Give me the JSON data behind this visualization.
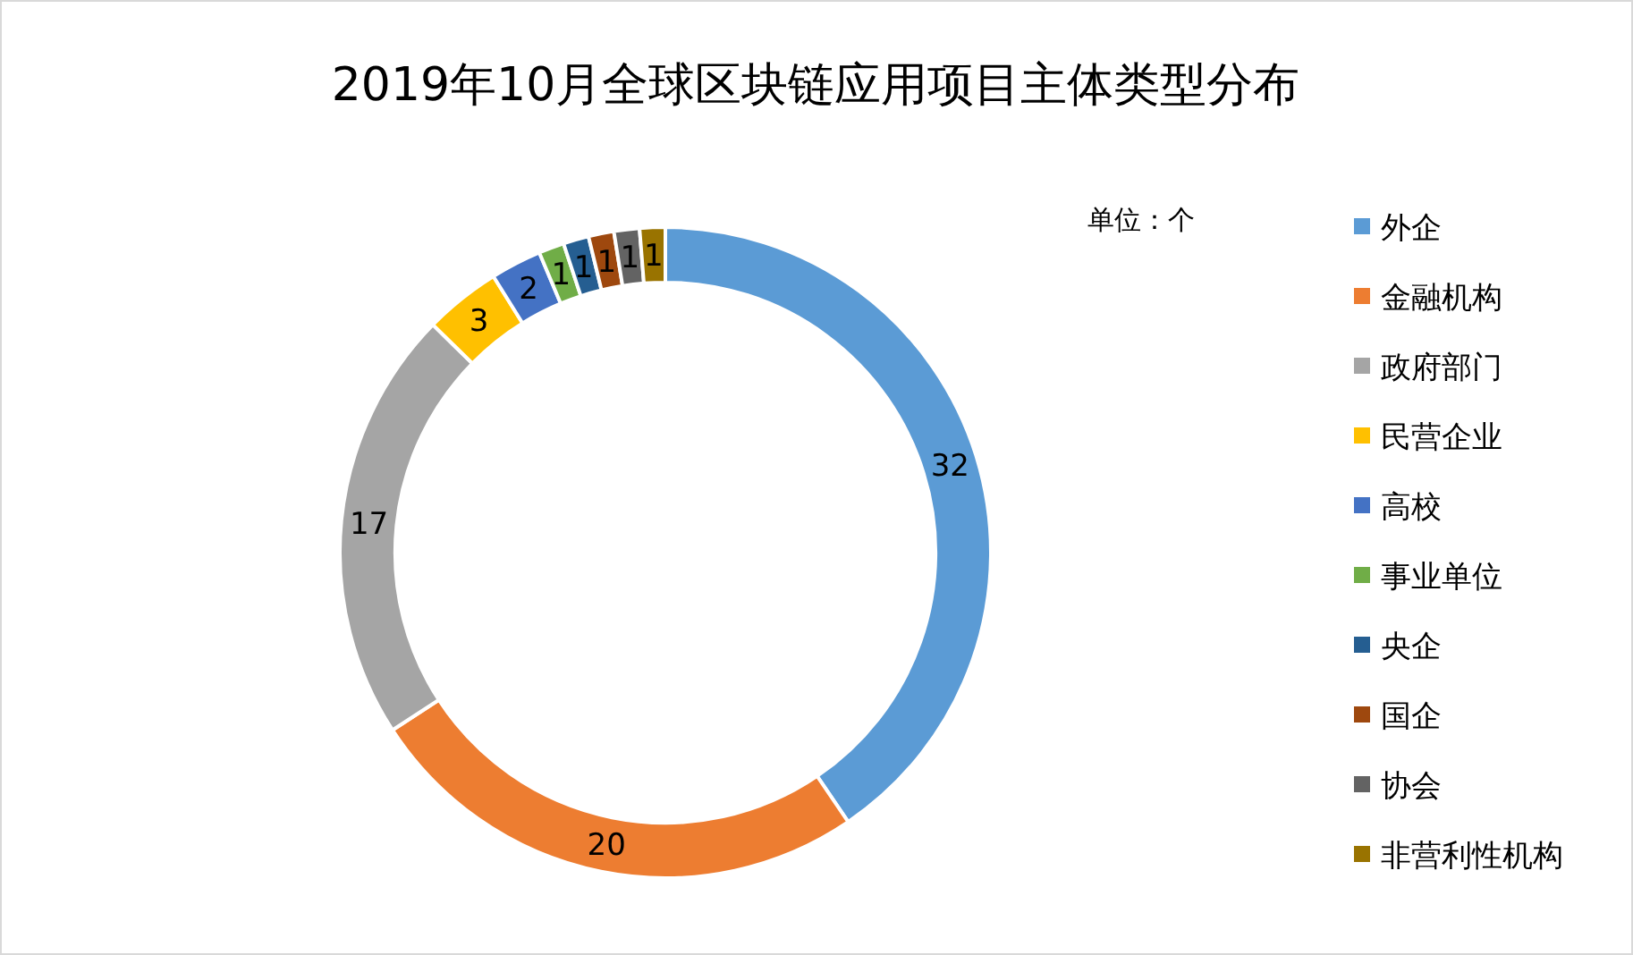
{
  "chart_data": {
    "type": "donut",
    "title": "2019年10月全球区块链应用项目主体类型分布",
    "categories": [
      "外企",
      "金融机构",
      "政府部门",
      "民营企业",
      "高校",
      "事业单位",
      "央企",
      "国企",
      "协会",
      "非营利性机构"
    ],
    "values": [
      32,
      20,
      17,
      3,
      2,
      1,
      1,
      1,
      1,
      1
    ],
    "colors": [
      "#5b9bd5",
      "#ed7d31",
      "#a5a5a5",
      "#ffc000",
      "#4472c4",
      "#70ad47",
      "#255e91",
      "#9e480e",
      "#636363",
      "#997300"
    ],
    "data_labels": true,
    "legend": "right",
    "annotations": [
      "单位：个"
    ]
  }
}
